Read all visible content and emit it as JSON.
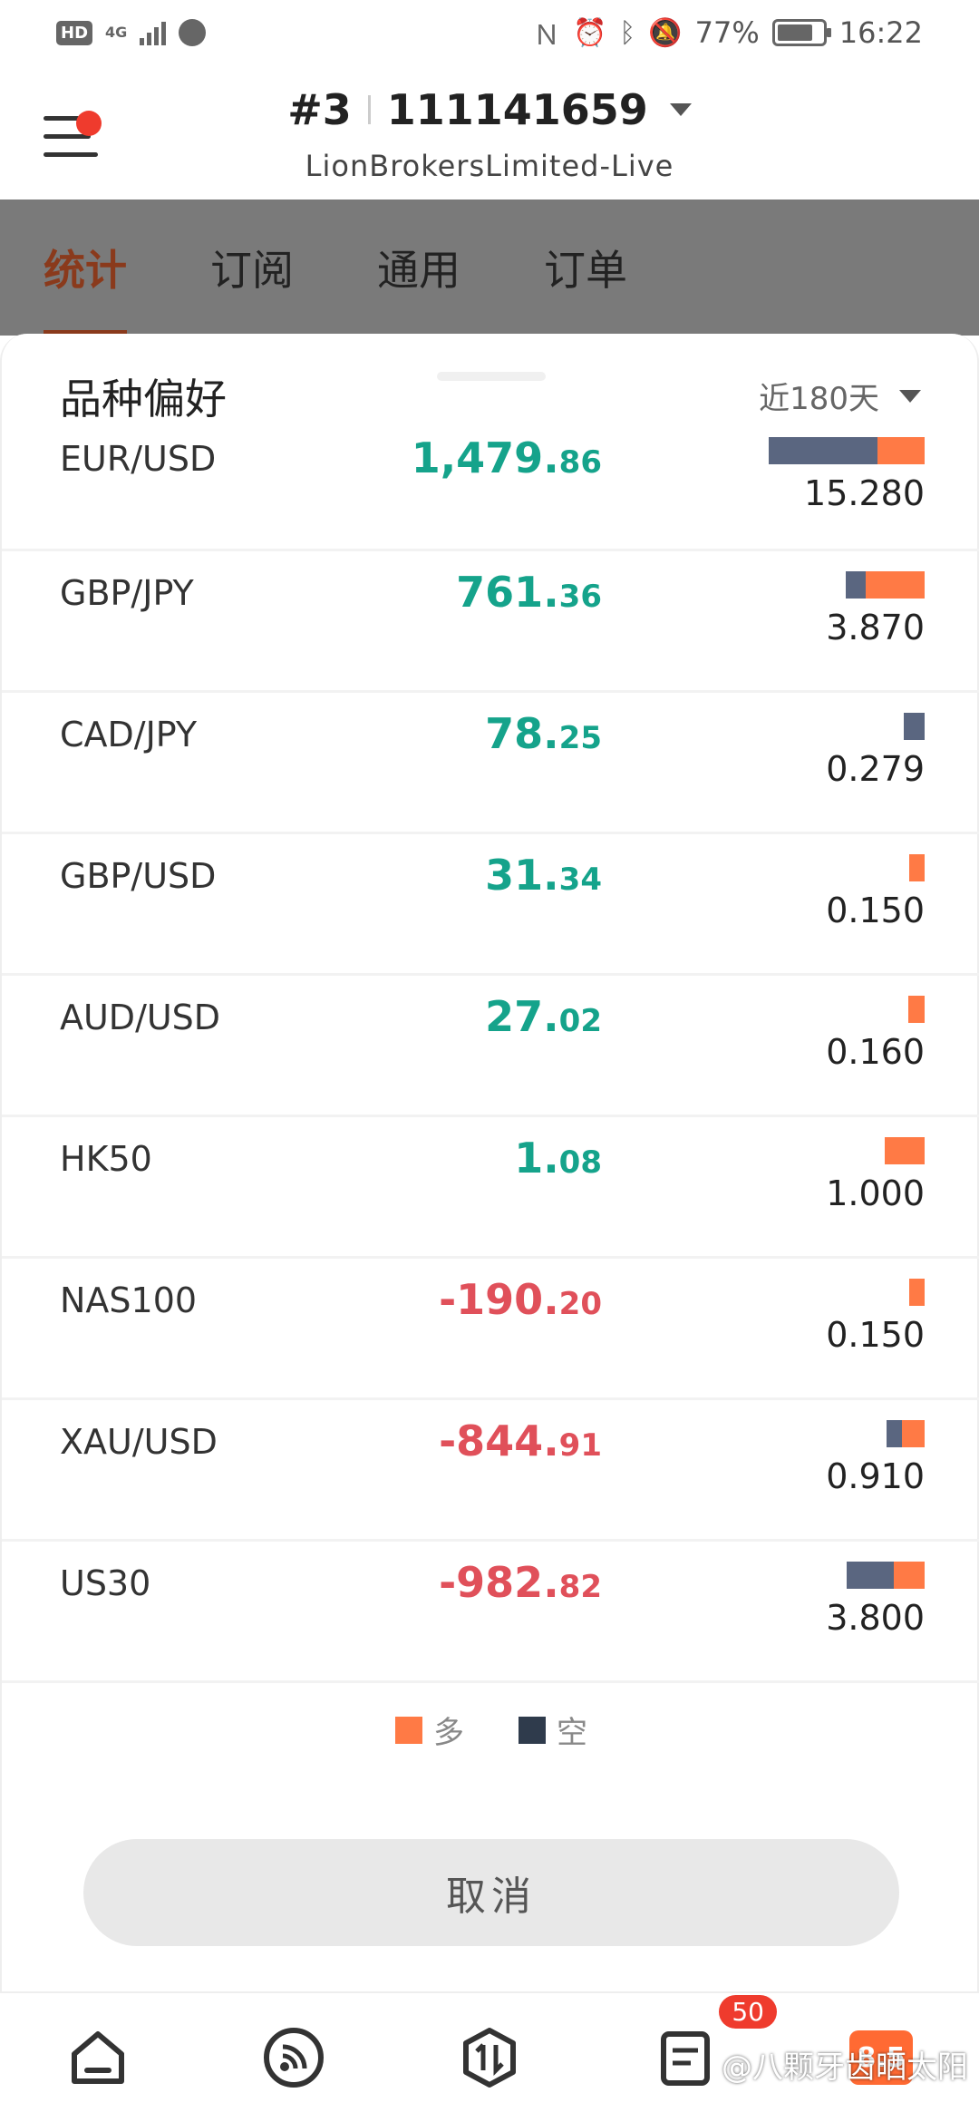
{
  "status_bar": {
    "left_badge": "HD",
    "network": "4G",
    "battery_pct": "77%",
    "time": "16:22"
  },
  "header": {
    "account_prefix": "#3",
    "account_number": "111141659",
    "broker": "LionBrokersLimited-Live"
  },
  "tabs": [
    {
      "label": "统计",
      "active": true
    },
    {
      "label": "订阅",
      "active": false
    },
    {
      "label": "通用",
      "active": false
    },
    {
      "label": "订单",
      "active": false
    }
  ],
  "sheet": {
    "title": "品种偏好",
    "range": "近180天",
    "rows": [
      {
        "symbol": "EUR/USD",
        "pnl_int": "1,479.",
        "pnl_dec": "86",
        "sign": "pos",
        "lots": "15.280",
        "short_frac": 0.7,
        "long_frac": 0.3
      },
      {
        "symbol": "GBP/JPY",
        "pnl_int": "761.",
        "pnl_dec": "36",
        "sign": "pos",
        "lots": "3.870",
        "short_frac": 0.25,
        "long_frac": 0.75
      },
      {
        "symbol": "CAD/JPY",
        "pnl_int": "78.",
        "pnl_dec": "25",
        "sign": "pos",
        "lots": "0.279",
        "short_frac": 1.0,
        "long_frac": 0.0
      },
      {
        "symbol": "GBP/USD",
        "pnl_int": "31.",
        "pnl_dec": "34",
        "sign": "pos",
        "lots": "0.150",
        "short_frac": 0.0,
        "long_frac": 1.0
      },
      {
        "symbol": "AUD/USD",
        "pnl_int": "27.",
        "pnl_dec": "02",
        "sign": "pos",
        "lots": "0.160",
        "short_frac": 0.0,
        "long_frac": 1.0
      },
      {
        "symbol": "HK50",
        "pnl_int": "1.",
        "pnl_dec": "08",
        "sign": "pos",
        "lots": "1.000",
        "short_frac": 0.0,
        "long_frac": 1.0
      },
      {
        "symbol": "NAS100",
        "pnl_int": "-190.",
        "pnl_dec": "20",
        "sign": "neg",
        "lots": "0.150",
        "short_frac": 0.0,
        "long_frac": 1.0
      },
      {
        "symbol": "XAU/USD",
        "pnl_int": "-844.",
        "pnl_dec": "91",
        "sign": "neg",
        "lots": "0.910",
        "short_frac": 0.4,
        "long_frac": 0.6
      },
      {
        "symbol": "US30",
        "pnl_int": "-982.",
        "pnl_dec": "82",
        "sign": "neg",
        "lots": "3.800",
        "short_frac": 0.6,
        "long_frac": 0.4
      }
    ],
    "legend": {
      "long_label": "多",
      "short_label": "空",
      "long_color": "#ff7a45",
      "short_color": "#2f3b4c"
    },
    "cancel_label": "取消"
  },
  "bottom_nav": {
    "items": [
      "home-icon",
      "feed-icon",
      "trade-icon",
      "orders-icon",
      "promo-icon"
    ],
    "badge": "50",
    "promo_text": "8.5"
  },
  "watermark": "@八颗牙齿晒太阳"
}
